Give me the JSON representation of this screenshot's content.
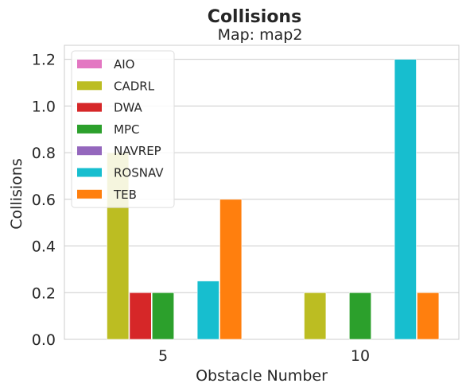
{
  "chart_data": {
    "type": "bar",
    "title": "Collisions",
    "subtitle": "Map: map2",
    "xlabel": "Obstacle Number",
    "ylabel": "Collisions",
    "categories": [
      "5",
      "10"
    ],
    "ylim": [
      0,
      1.26
    ],
    "yticks": [
      "0.0",
      "0.2",
      "0.4",
      "0.6",
      "0.8",
      "1.0",
      "1.2"
    ],
    "grid": true,
    "legend_position": "top-left",
    "series": [
      {
        "name": "AIO",
        "color": "#e377c2",
        "values": [
          0,
          0
        ]
      },
      {
        "name": "CADRL",
        "color": "#bcbd22",
        "values": [
          0.8,
          0.2
        ]
      },
      {
        "name": "DWA",
        "color": "#d62728",
        "values": [
          0.2,
          0
        ]
      },
      {
        "name": "MPC",
        "color": "#2ca02c",
        "values": [
          0.2,
          0.2
        ]
      },
      {
        "name": "NAVREP",
        "color": "#9467bd",
        "values": [
          0,
          0
        ]
      },
      {
        "name": "ROSNAV",
        "color": "#17becf",
        "values": [
          0.25,
          1.2
        ]
      },
      {
        "name": "TEB",
        "color": "#ff7f0e",
        "values": [
          0.6,
          0.2
        ]
      }
    ]
  }
}
